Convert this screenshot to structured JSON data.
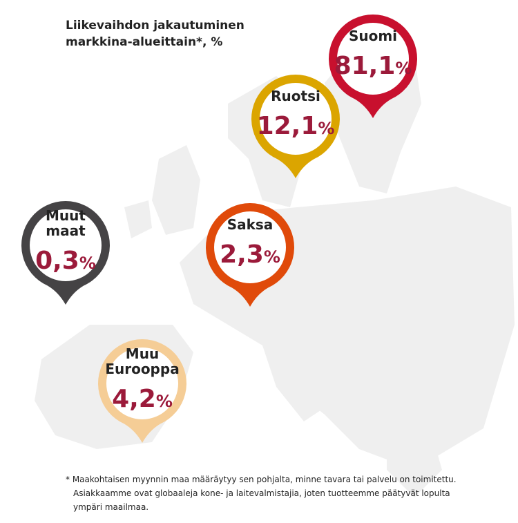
{
  "title_lines": [
    "Liikevaihdon jakautuminen",
    "markkina-alueittain*, %"
  ],
  "pins": [
    {
      "label_lines": [
        "Suomi"
      ],
      "value": "81,1",
      "unit": "%",
      "color": "#c8102e"
    },
    {
      "label_lines": [
        "Ruotsi"
      ],
      "value": "12,1",
      "unit": "%",
      "color": "#dba500"
    },
    {
      "label_lines": [
        "Saksa"
      ],
      "value": "2,3",
      "unit": "%",
      "color": "#e04a0a"
    },
    {
      "label_lines": [
        "Muut",
        "maat"
      ],
      "value": "0,3",
      "unit": "%",
      "color": "#454345"
    },
    {
      "label_lines": [
        "Muu",
        "Eurooppa"
      ],
      "value": "4,2",
      "unit": "%",
      "color": "#f5cd96"
    }
  ],
  "footnote_lines": [
    "* Maakohtaisen myynnin maa määräytyy sen pohjalta, minne tavara tai palvelu on toimitettu.",
    "Asiakkaamme ovat globaaleja kone- ja laitevalmistajia, joten tuotteemme päätyvät lopulta",
    "ympäri maailmaa."
  ]
}
